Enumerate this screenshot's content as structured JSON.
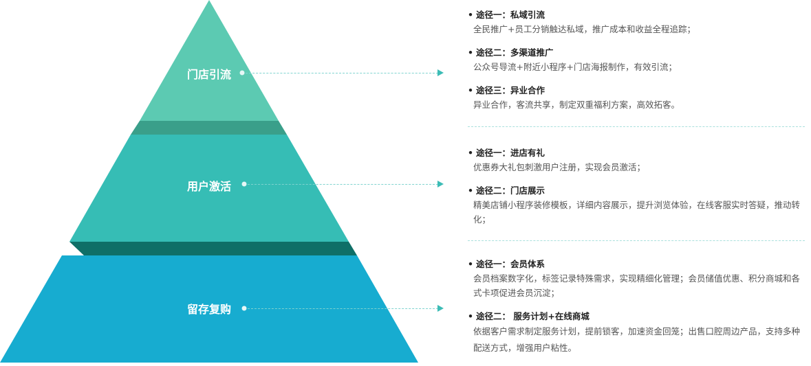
{
  "colors": {
    "top": "#5ccab2",
    "top_shadow": "#3a9f8a",
    "middle": "#36bdb5",
    "middle_shadow": "#0f6f67",
    "bottom": "#17acd0",
    "connector": "#7fd3cf",
    "arrow": "#3cbcb6"
  },
  "levels": [
    {
      "label": "门店引流",
      "items": [
        {
          "title": "途径一：私域引流",
          "desc": "全民推广+员工分销触达私域，推广成本和收益全程追踪；"
        },
        {
          "title": "途径二：多渠道推广",
          "desc": "公众号导流+附近小程序+门店海报制作，有效引流；"
        },
        {
          "title": "途径三：异业合作",
          "desc": "异业合作，客流共享，制定双重福利方案，高效拓客。"
        }
      ]
    },
    {
      "label": "用户激活",
      "items": [
        {
          "title": "途径一：进店有礼",
          "desc": "优惠券大礼包刺激用户注册，实现会员激活；"
        },
        {
          "title": "途径二：门店展示",
          "desc": "精美店铺小程序装修模板，详细内容展示，提升浏览体验，在线客服实时答疑，推动转化；"
        }
      ]
    },
    {
      "label": "留存复购",
      "items": [
        {
          "title": "途径一：会员体系",
          "desc": "会员档案数字化，标签记录特殊需求，实现精细化管理；会员储值优惠、积分商城和各式卡项促进会员沉淀；"
        },
        {
          "title": "途径二： 服务计划+在线商城",
          "desc": "依据客户需求制定服务计划，提前锁客，加速资金回笼；出售口腔周边产品，支持多种配送方式，增强用户粘性。"
        }
      ]
    }
  ]
}
